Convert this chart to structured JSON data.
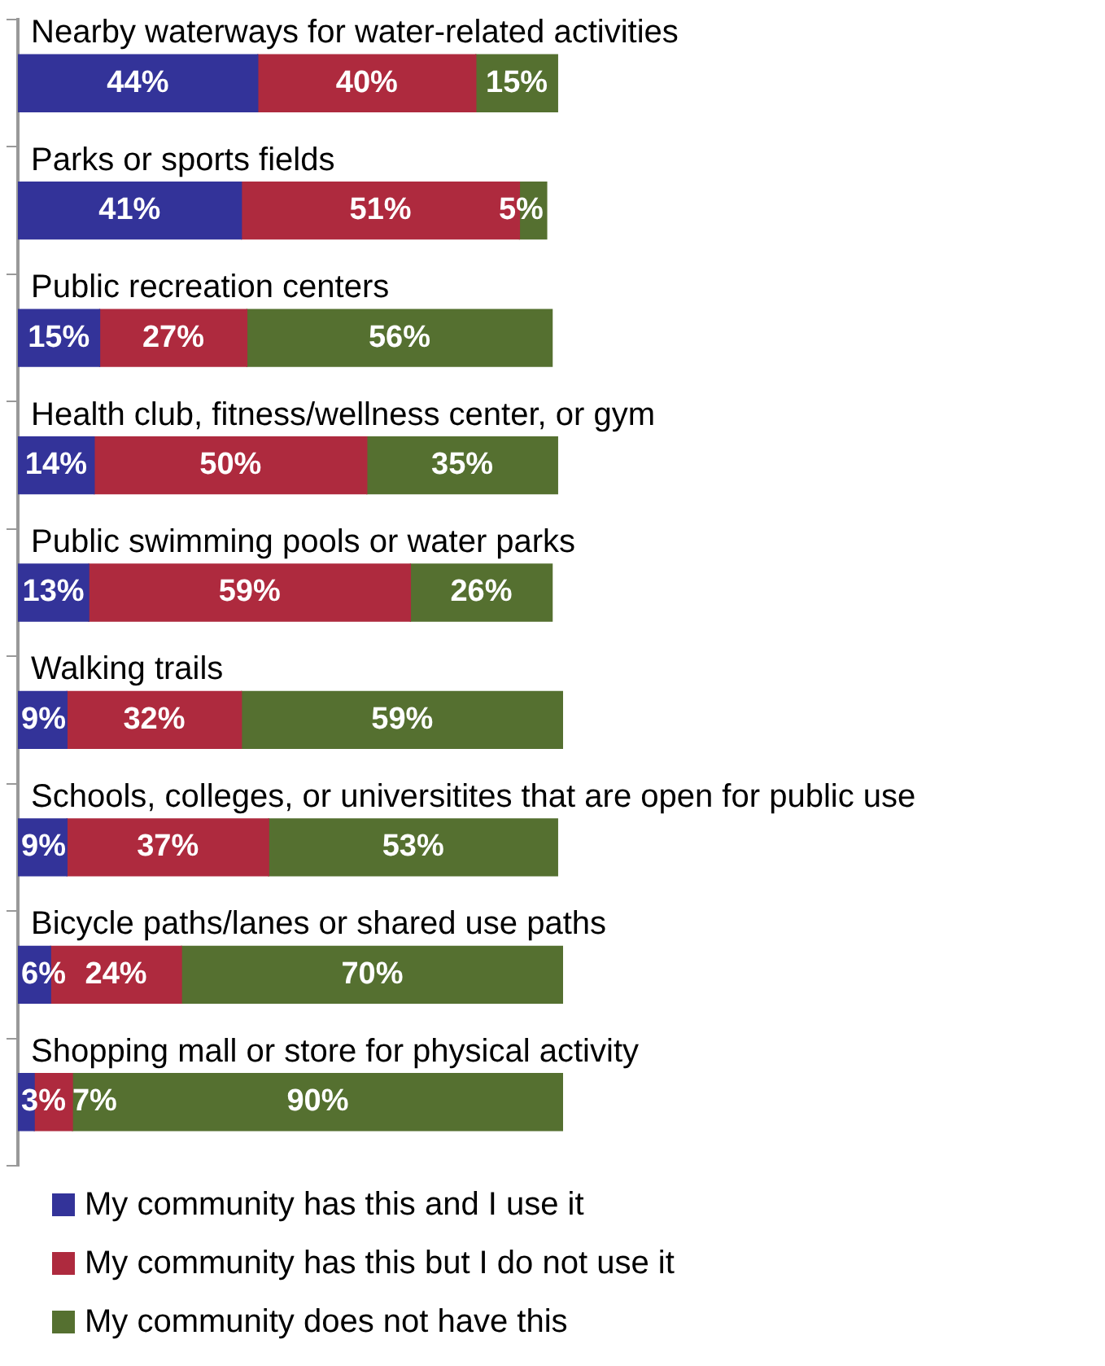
{
  "chart_data": {
    "type": "bar",
    "orientation": "horizontal",
    "stacked": true,
    "legend": "bottom",
    "categories": [
      "Nearby waterways for water-related activities",
      "Parks or sports fields",
      "Public recreation centers",
      "Health club, fitness/wellness center, or gym",
      "Public swimming pools or water parks",
      "Walking trails",
      "Schools, colleges, or universitites that are open for public use",
      "Bicycle paths/lanes or shared use paths",
      "Shopping mall or store for physical activity"
    ],
    "series": [
      {
        "name": "My community has this and I use it",
        "color": "#333399",
        "values": [
          44,
          41,
          15,
          14,
          13,
          9,
          9,
          6,
          3
        ],
        "value_labels": [
          "44%",
          "41%",
          "15%",
          "14%",
          "13%",
          "9%",
          "9%",
          "6%",
          "3%"
        ]
      },
      {
        "name": "My community has this but I do not use it",
        "color": "#ae2a3e",
        "values": [
          40,
          51,
          27,
          50,
          59,
          32,
          37,
          24,
          7
        ],
        "value_labels": [
          "40%",
          "51%",
          "27%",
          "50%",
          "59%",
          "32%",
          "37%",
          "24%",
          "7%"
        ]
      },
      {
        "name": "My community does not have this",
        "color": "#557030",
        "values": [
          15,
          5,
          56,
          35,
          26,
          59,
          53,
          70,
          90
        ],
        "value_labels": [
          "15%",
          "5%",
          "56%",
          "35%",
          "26%",
          "59%",
          "53%",
          "70%",
          "90%"
        ]
      }
    ]
  }
}
